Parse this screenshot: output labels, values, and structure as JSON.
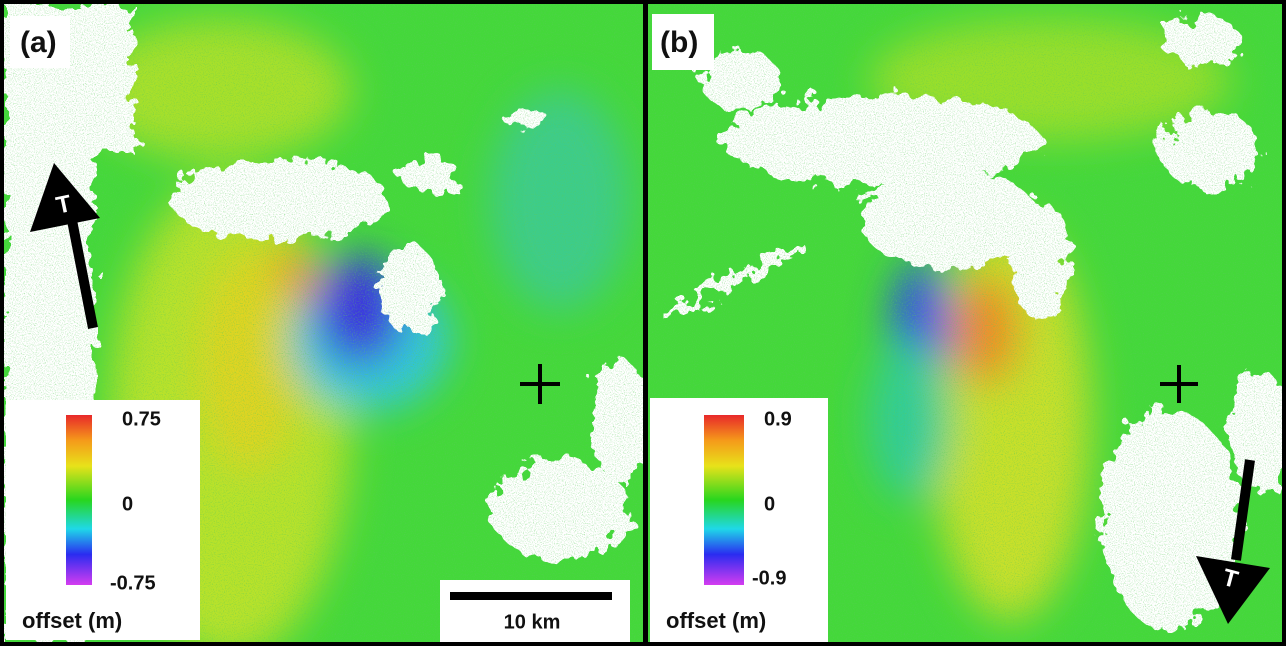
{
  "panels": [
    {
      "label": "(a)",
      "colorbar": {
        "ticks": [
          "0.75",
          "0",
          "-0.75"
        ],
        "label": "offset (m)"
      },
      "arrow_label": "T",
      "scale_bar": "10 km"
    },
    {
      "label": "(b)",
      "colorbar": {
        "ticks": [
          "0.9",
          "0",
          "-0.9"
        ],
        "label": "offset (m)"
      },
      "arrow_label": "T"
    }
  ]
}
